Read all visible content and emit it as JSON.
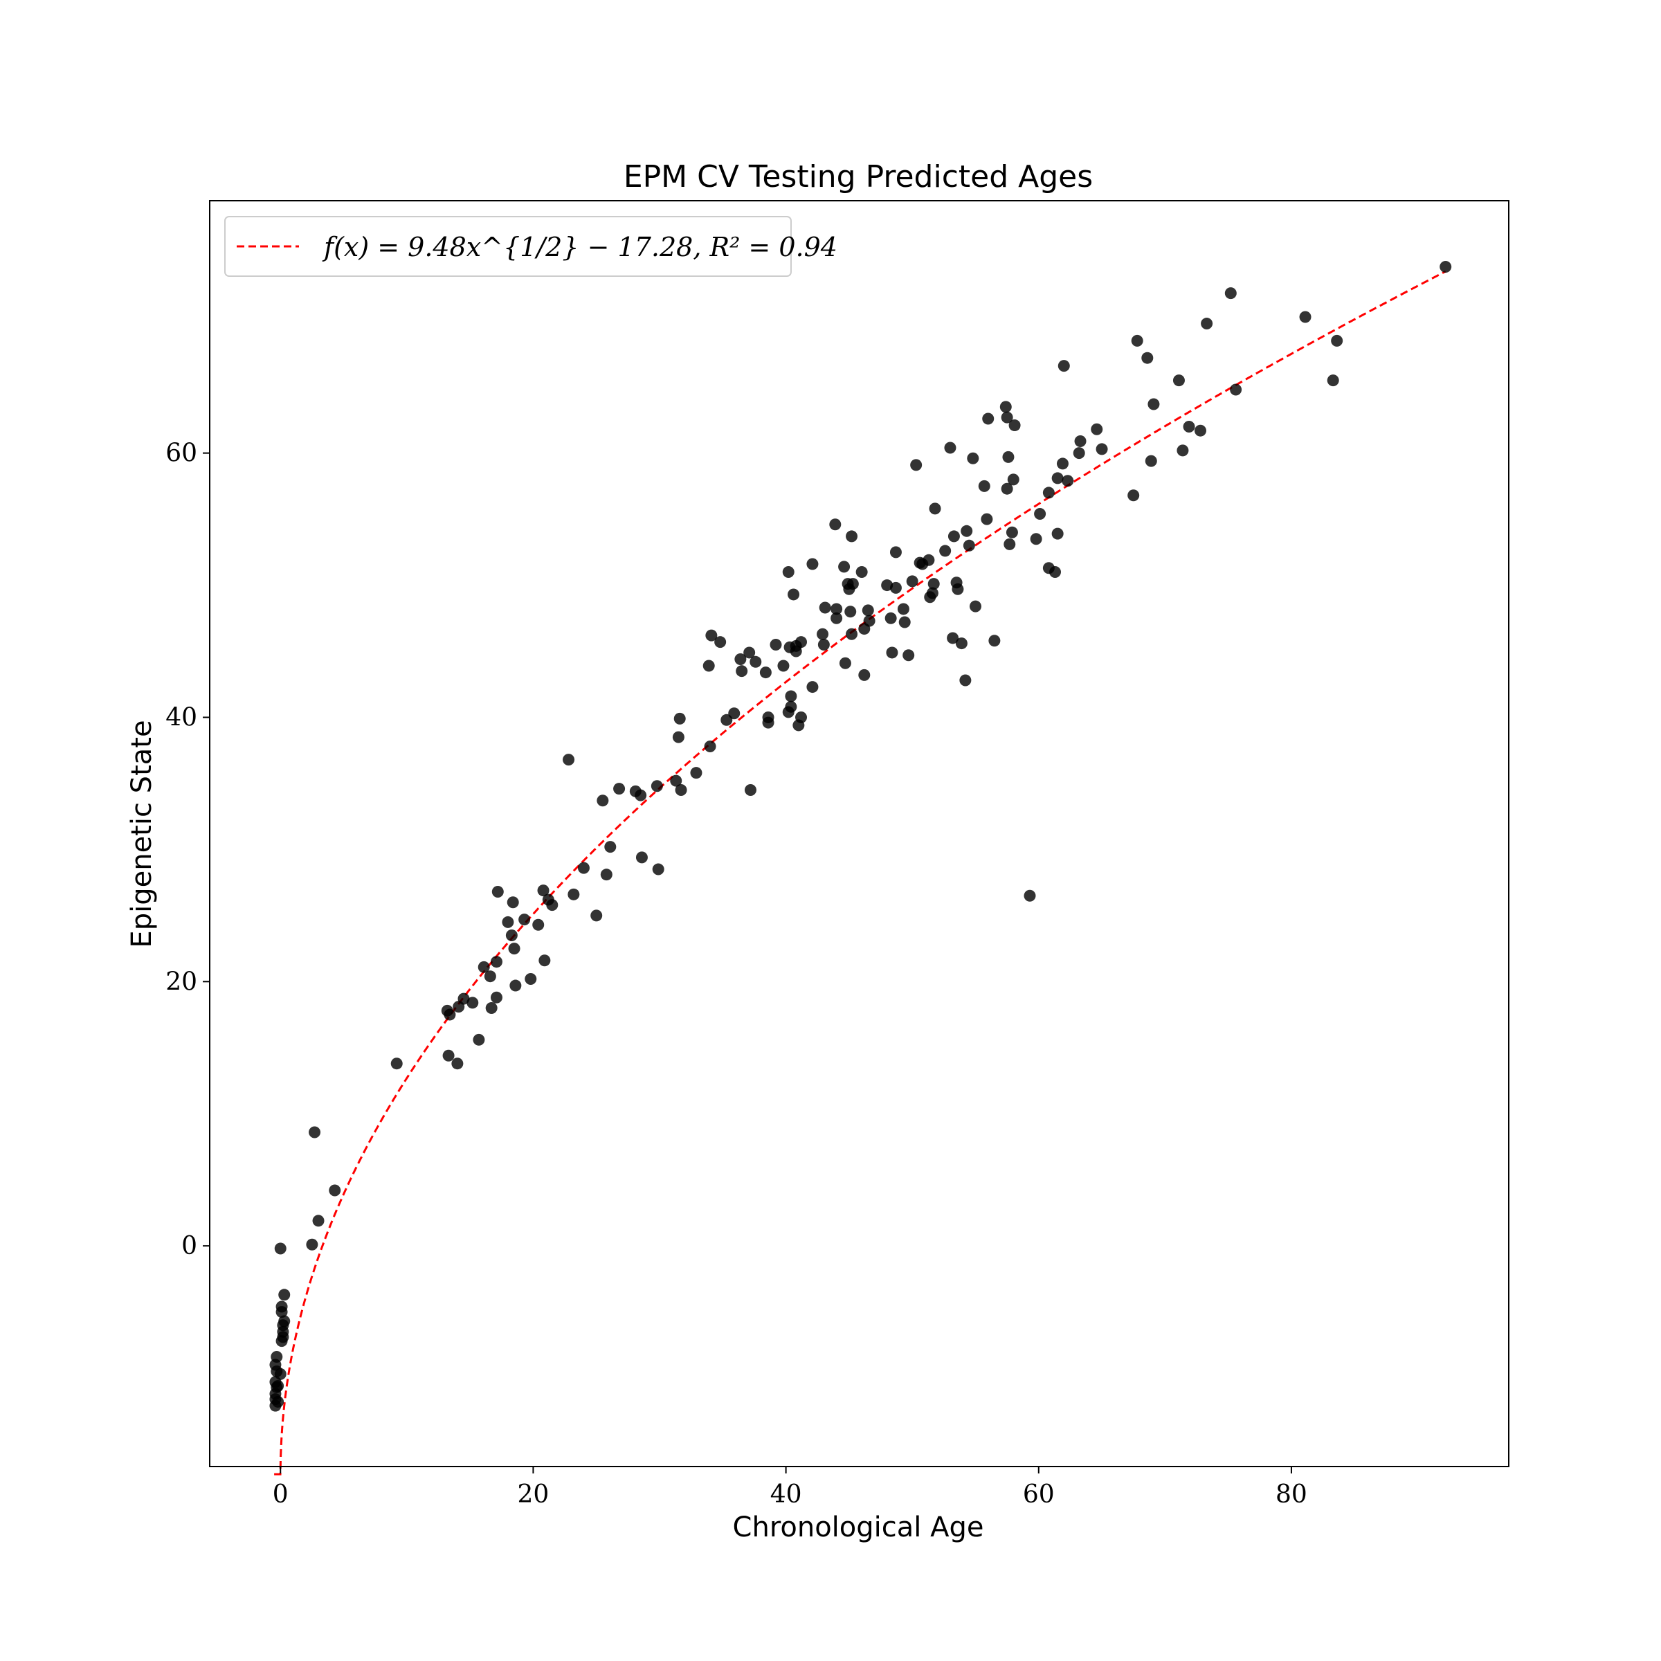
{
  "chart_data": {
    "type": "scatter",
    "title": "EPM CV Testing Predicted Ages",
    "xlabel": "Chronological Age",
    "ylabel": "Epigenetic State",
    "xlim": [
      -5.6,
      97.2
    ],
    "ylim": [
      -16.7,
      79.1
    ],
    "xticks": [
      0,
      20,
      40,
      60,
      80
    ],
    "yticks": [
      0,
      20,
      40,
      60
    ],
    "grid": false,
    "legend_position": "top-left",
    "colors": {
      "points": "#000000",
      "fit": "#ff0000",
      "frame": "#000000"
    },
    "fit": {
      "label": "f(x) = 9.48x^{1/2} − 17.28, R² = 0.94",
      "a": 9.48,
      "b": -17.28,
      "x_range": [
        -0.5,
        92.2
      ]
    },
    "points": [
      [
        -0.4,
        -12.1
      ],
      [
        -0.4,
        -11.6
      ],
      [
        -0.4,
        -11.2
      ],
      [
        -0.3,
        -10.7
      ],
      [
        -0.4,
        -10.3
      ],
      [
        -0.3,
        -9.5
      ],
      [
        -0.4,
        -9.0
      ],
      [
        -0.3,
        -8.4
      ],
      [
        -0.2,
        -11.8
      ],
      [
        -0.2,
        -10.6
      ],
      [
        0.0,
        -9.7
      ],
      [
        0.1,
        -7.2
      ],
      [
        0.2,
        -6.5
      ],
      [
        0.2,
        -6.0
      ],
      [
        0.3,
        -5.7
      ],
      [
        0.1,
        -5.0
      ],
      [
        0.1,
        -4.6
      ],
      [
        0.3,
        -3.7
      ],
      [
        0.2,
        -6.9
      ],
      [
        0.0,
        -0.2
      ],
      [
        2.5,
        0.1
      ],
      [
        3.0,
        1.9
      ],
      [
        2.7,
        8.6
      ],
      [
        4.3,
        4.2
      ],
      [
        9.2,
        13.8
      ],
      [
        13.2,
        17.8
      ],
      [
        13.4,
        17.5
      ],
      [
        14.1,
        18.1
      ],
      [
        14.5,
        18.7
      ],
      [
        15.2,
        18.4
      ],
      [
        13.3,
        14.4
      ],
      [
        14.0,
        13.8
      ],
      [
        15.7,
        15.6
      ],
      [
        16.1,
        21.1
      ],
      [
        16.6,
        20.4
      ],
      [
        17.1,
        21.5
      ],
      [
        16.7,
        18.0
      ],
      [
        17.1,
        18.8
      ],
      [
        17.2,
        26.8
      ],
      [
        18.0,
        24.5
      ],
      [
        18.4,
        26.0
      ],
      [
        18.3,
        23.5
      ],
      [
        18.5,
        22.5
      ],
      [
        18.6,
        19.7
      ],
      [
        19.3,
        24.7
      ],
      [
        19.8,
        20.2
      ],
      [
        20.4,
        24.3
      ],
      [
        20.8,
        26.9
      ],
      [
        21.2,
        26.2
      ],
      [
        21.5,
        25.8
      ],
      [
        20.9,
        21.6
      ],
      [
        22.8,
        36.8
      ],
      [
        23.2,
        26.6
      ],
      [
        24.0,
        28.6
      ],
      [
        25.0,
        25.0
      ],
      [
        25.5,
        33.7
      ],
      [
        25.8,
        28.1
      ],
      [
        26.1,
        30.2
      ],
      [
        26.8,
        34.6
      ],
      [
        28.1,
        34.4
      ],
      [
        28.5,
        34.1
      ],
      [
        28.6,
        29.4
      ],
      [
        29.8,
        34.8
      ],
      [
        29.9,
        28.5
      ],
      [
        31.3,
        35.2
      ],
      [
        31.5,
        38.5
      ],
      [
        31.6,
        39.9
      ],
      [
        31.7,
        34.5
      ],
      [
        32.9,
        35.8
      ],
      [
        33.9,
        43.9
      ],
      [
        34.0,
        37.8
      ],
      [
        34.1,
        46.2
      ],
      [
        34.8,
        45.7
      ],
      [
        35.3,
        39.8
      ],
      [
        35.9,
        40.3
      ],
      [
        36.4,
        44.4
      ],
      [
        36.5,
        43.5
      ],
      [
        37.1,
        44.9
      ],
      [
        37.2,
        34.5
      ],
      [
        37.6,
        44.2
      ],
      [
        38.4,
        43.4
      ],
      [
        38.6,
        40.0
      ],
      [
        38.6,
        39.6
      ],
      [
        39.2,
        45.5
      ],
      [
        39.8,
        43.9
      ],
      [
        40.2,
        51.0
      ],
      [
        40.2,
        40.4
      ],
      [
        40.4,
        40.8
      ],
      [
        40.4,
        41.6
      ],
      [
        40.3,
        45.3
      ],
      [
        40.6,
        49.3
      ],
      [
        40.8,
        45.4
      ],
      [
        40.8,
        45.0
      ],
      [
        41.0,
        39.4
      ],
      [
        41.2,
        40.0
      ],
      [
        41.2,
        45.7
      ],
      [
        42.1,
        42.3
      ],
      [
        42.1,
        51.6
      ],
      [
        42.9,
        46.3
      ],
      [
        43.1,
        48.3
      ],
      [
        43.0,
        45.5
      ],
      [
        43.9,
        54.6
      ],
      [
        44.0,
        47.5
      ],
      [
        44.0,
        48.2
      ],
      [
        44.6,
        51.4
      ],
      [
        44.7,
        44.1
      ],
      [
        44.9,
        50.1
      ],
      [
        45.0,
        49.7
      ],
      [
        45.1,
        48.0
      ],
      [
        45.2,
        53.7
      ],
      [
        45.2,
        46.3
      ],
      [
        45.3,
        50.1
      ],
      [
        46.0,
        51.0
      ],
      [
        46.2,
        46.7
      ],
      [
        46.2,
        43.2
      ],
      [
        46.5,
        48.1
      ],
      [
        46.6,
        47.3
      ],
      [
        48.0,
        50.0
      ],
      [
        48.3,
        47.5
      ],
      [
        48.4,
        44.9
      ],
      [
        48.7,
        52.5
      ],
      [
        48.7,
        49.8
      ],
      [
        49.3,
        48.2
      ],
      [
        49.4,
        47.2
      ],
      [
        49.7,
        44.7
      ],
      [
        50.0,
        50.3
      ],
      [
        50.3,
        59.1
      ],
      [
        50.6,
        51.7
      ],
      [
        50.8,
        51.6
      ],
      [
        51.3,
        51.9
      ],
      [
        51.4,
        49.1
      ],
      [
        51.6,
        49.4
      ],
      [
        51.7,
        50.1
      ],
      [
        51.8,
        55.8
      ],
      [
        52.6,
        52.6
      ],
      [
        53.0,
        60.4
      ],
      [
        53.2,
        46.0
      ],
      [
        53.3,
        53.7
      ],
      [
        53.5,
        50.2
      ],
      [
        53.6,
        49.7
      ],
      [
        53.9,
        45.6
      ],
      [
        54.2,
        42.8
      ],
      [
        54.3,
        54.1
      ],
      [
        54.5,
        53.0
      ],
      [
        54.8,
        59.6
      ],
      [
        55.0,
        48.4
      ],
      [
        55.7,
        57.5
      ],
      [
        55.9,
        55.0
      ],
      [
        56.0,
        62.6
      ],
      [
        56.5,
        45.8
      ],
      [
        57.4,
        63.5
      ],
      [
        57.5,
        62.7
      ],
      [
        57.5,
        57.3
      ],
      [
        57.6,
        59.7
      ],
      [
        57.7,
        53.1
      ],
      [
        57.9,
        54.0
      ],
      [
        58.0,
        58.0
      ],
      [
        58.1,
        62.1
      ],
      [
        59.3,
        26.5
      ],
      [
        59.8,
        53.5
      ],
      [
        60.1,
        55.4
      ],
      [
        60.8,
        57.0
      ],
      [
        60.8,
        51.3
      ],
      [
        61.3,
        51.0
      ],
      [
        61.5,
        58.1
      ],
      [
        61.5,
        53.9
      ],
      [
        61.9,
        59.2
      ],
      [
        62.0,
        66.6
      ],
      [
        62.3,
        57.9
      ],
      [
        63.2,
        60.0
      ],
      [
        63.3,
        60.9
      ],
      [
        64.6,
        61.8
      ],
      [
        65.0,
        60.3
      ],
      [
        67.5,
        56.8
      ],
      [
        67.8,
        68.5
      ],
      [
        68.6,
        67.2
      ],
      [
        68.9,
        59.4
      ],
      [
        69.1,
        63.7
      ],
      [
        71.1,
        65.5
      ],
      [
        71.4,
        60.2
      ],
      [
        71.9,
        62.0
      ],
      [
        72.8,
        61.7
      ],
      [
        73.3,
        69.8
      ],
      [
        75.2,
        72.1
      ],
      [
        75.6,
        64.8
      ],
      [
        81.1,
        70.3
      ],
      [
        83.3,
        65.5
      ],
      [
        83.6,
        68.5
      ],
      [
        92.2,
        74.1
      ]
    ]
  }
}
